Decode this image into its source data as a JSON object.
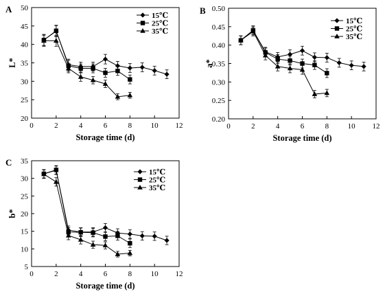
{
  "chart_data": [
    {
      "panel_label": "A",
      "type": "line",
      "ylabel": "L*",
      "xlabel": "Storage time (d)",
      "xlim": [
        0,
        12
      ],
      "ylim": [
        20,
        50
      ],
      "xticks": [
        0,
        2,
        4,
        6,
        8,
        10,
        12
      ],
      "yticks": [
        20,
        25,
        30,
        35,
        40,
        45,
        50
      ],
      "ytick_labels": [
        "20",
        "25",
        "30",
        "35",
        "40",
        "45",
        "50"
      ],
      "legend_position": "top-right",
      "series": [
        {
          "name": "15℃",
          "marker": "diamond",
          "x": [
            1,
            2,
            3,
            4,
            5,
            6,
            7,
            8,
            9,
            10,
            11
          ],
          "y": [
            41.2,
            43.6,
            34.5,
            34.0,
            34.0,
            36.0,
            34.2,
            33.6,
            33.8,
            32.9,
            31.9
          ],
          "err": [
            1.5,
            1.5,
            1.5,
            1.2,
            1.2,
            1.3,
            1.2,
            1.2,
            1.2,
            1.2,
            1.2
          ]
        },
        {
          "name": "25℃",
          "marker": "square",
          "x": [
            1,
            2,
            3,
            4,
            5,
            6,
            7,
            8
          ],
          "y": [
            41.2,
            43.7,
            34.2,
            33.5,
            33.5,
            32.3,
            32.8,
            30.5
          ],
          "err": [
            1.5,
            1.5,
            1.5,
            1.2,
            1.2,
            1.2,
            1.2,
            1.2
          ]
        },
        {
          "name": "35℃",
          "marker": "triangle",
          "x": [
            1,
            2,
            3,
            4,
            5,
            6,
            7,
            8
          ],
          "y": [
            41.0,
            41.0,
            33.5,
            31.2,
            30.3,
            29.3,
            25.8,
            26.2
          ],
          "err": [
            1.5,
            1.5,
            1.2,
            1.2,
            1.0,
            1.0,
            0.8,
            0.8
          ]
        }
      ]
    },
    {
      "panel_label": "B",
      "type": "line",
      "ylabel": "a*",
      "xlabel": "Storage time (d)",
      "xlim": [
        0,
        12
      ],
      "ylim": [
        0.2,
        0.5
      ],
      "xticks": [
        0,
        2,
        4,
        6,
        8,
        10,
        12
      ],
      "yticks": [
        0.2,
        0.25,
        0.3,
        0.35,
        0.4,
        0.45,
        0.5
      ],
      "ytick_labels": [
        "0.20",
        "0.25",
        "0.30",
        "0.35",
        "0.40",
        "0.45",
        "0.50"
      ],
      "legend_position": "top-right",
      "series": [
        {
          "name": "15℃",
          "marker": "diamond",
          "x": [
            1,
            2,
            3,
            4,
            5,
            6,
            7,
            8,
            9,
            10,
            11
          ],
          "y": [
            0.413,
            0.44,
            0.382,
            0.368,
            0.375,
            0.385,
            0.367,
            0.366,
            0.352,
            0.345,
            0.342
          ],
          "err": [
            0.012,
            0.012,
            0.012,
            0.012,
            0.012,
            0.012,
            0.012,
            0.012,
            0.012,
            0.012,
            0.012
          ]
        },
        {
          "name": "25℃",
          "marker": "square",
          "x": [
            1,
            2,
            3,
            4,
            5,
            6,
            7,
            8
          ],
          "y": [
            0.413,
            0.44,
            0.38,
            0.362,
            0.358,
            0.35,
            0.346,
            0.324
          ],
          "err": [
            0.012,
            0.012,
            0.012,
            0.012,
            0.012,
            0.012,
            0.012,
            0.012
          ]
        },
        {
          "name": "35℃",
          "marker": "triangle",
          "x": [
            1,
            2,
            3,
            4,
            5,
            6,
            7,
            8
          ],
          "y": [
            0.413,
            0.437,
            0.372,
            0.342,
            0.337,
            0.333,
            0.267,
            0.27
          ],
          "err": [
            0.012,
            0.012,
            0.012,
            0.012,
            0.012,
            0.012,
            0.01,
            0.01
          ]
        }
      ]
    },
    {
      "panel_label": "C",
      "type": "line",
      "ylabel": "b*",
      "xlabel": "Storage time (d)",
      "xlim": [
        0,
        12
      ],
      "ylim": [
        5,
        35
      ],
      "xticks": [
        0,
        2,
        4,
        6,
        8,
        10,
        12
      ],
      "yticks": [
        5,
        10,
        15,
        20,
        25,
        30,
        35
      ],
      "ytick_labels": [
        "5",
        "10",
        "15",
        "20",
        "25",
        "30",
        "35"
      ],
      "legend_position": "top-right",
      "series": [
        {
          "name": "15℃",
          "marker": "diamond",
          "x": [
            1,
            2,
            3,
            4,
            5,
            6,
            7,
            8,
            9,
            10,
            11
          ],
          "y": [
            31.3,
            32.3,
            15.3,
            14.8,
            14.8,
            16.0,
            14.5,
            14.2,
            13.7,
            13.6,
            12.4
          ],
          "err": [
            1.2,
            1.2,
            1.2,
            1.2,
            1.2,
            1.2,
            1.2,
            1.2,
            1.2,
            1.2,
            1.2
          ]
        },
        {
          "name": "25℃",
          "marker": "square",
          "x": [
            1,
            2,
            3,
            4,
            5,
            6,
            7,
            8
          ],
          "y": [
            31.3,
            32.4,
            14.8,
            14.7,
            14.6,
            13.5,
            13.7,
            11.6
          ],
          "err": [
            1.2,
            1.2,
            1.2,
            1.2,
            1.2,
            1.2,
            1.2,
            1.2
          ]
        },
        {
          "name": "35℃",
          "marker": "triangle",
          "x": [
            1,
            2,
            3,
            4,
            5,
            6,
            7,
            8
          ],
          "y": [
            31.2,
            29.0,
            13.8,
            12.6,
            11.2,
            11.0,
            8.5,
            8.8
          ],
          "err": [
            1.2,
            1.2,
            1.2,
            1.2,
            1.0,
            1.0,
            0.8,
            0.8
          ]
        }
      ]
    }
  ]
}
